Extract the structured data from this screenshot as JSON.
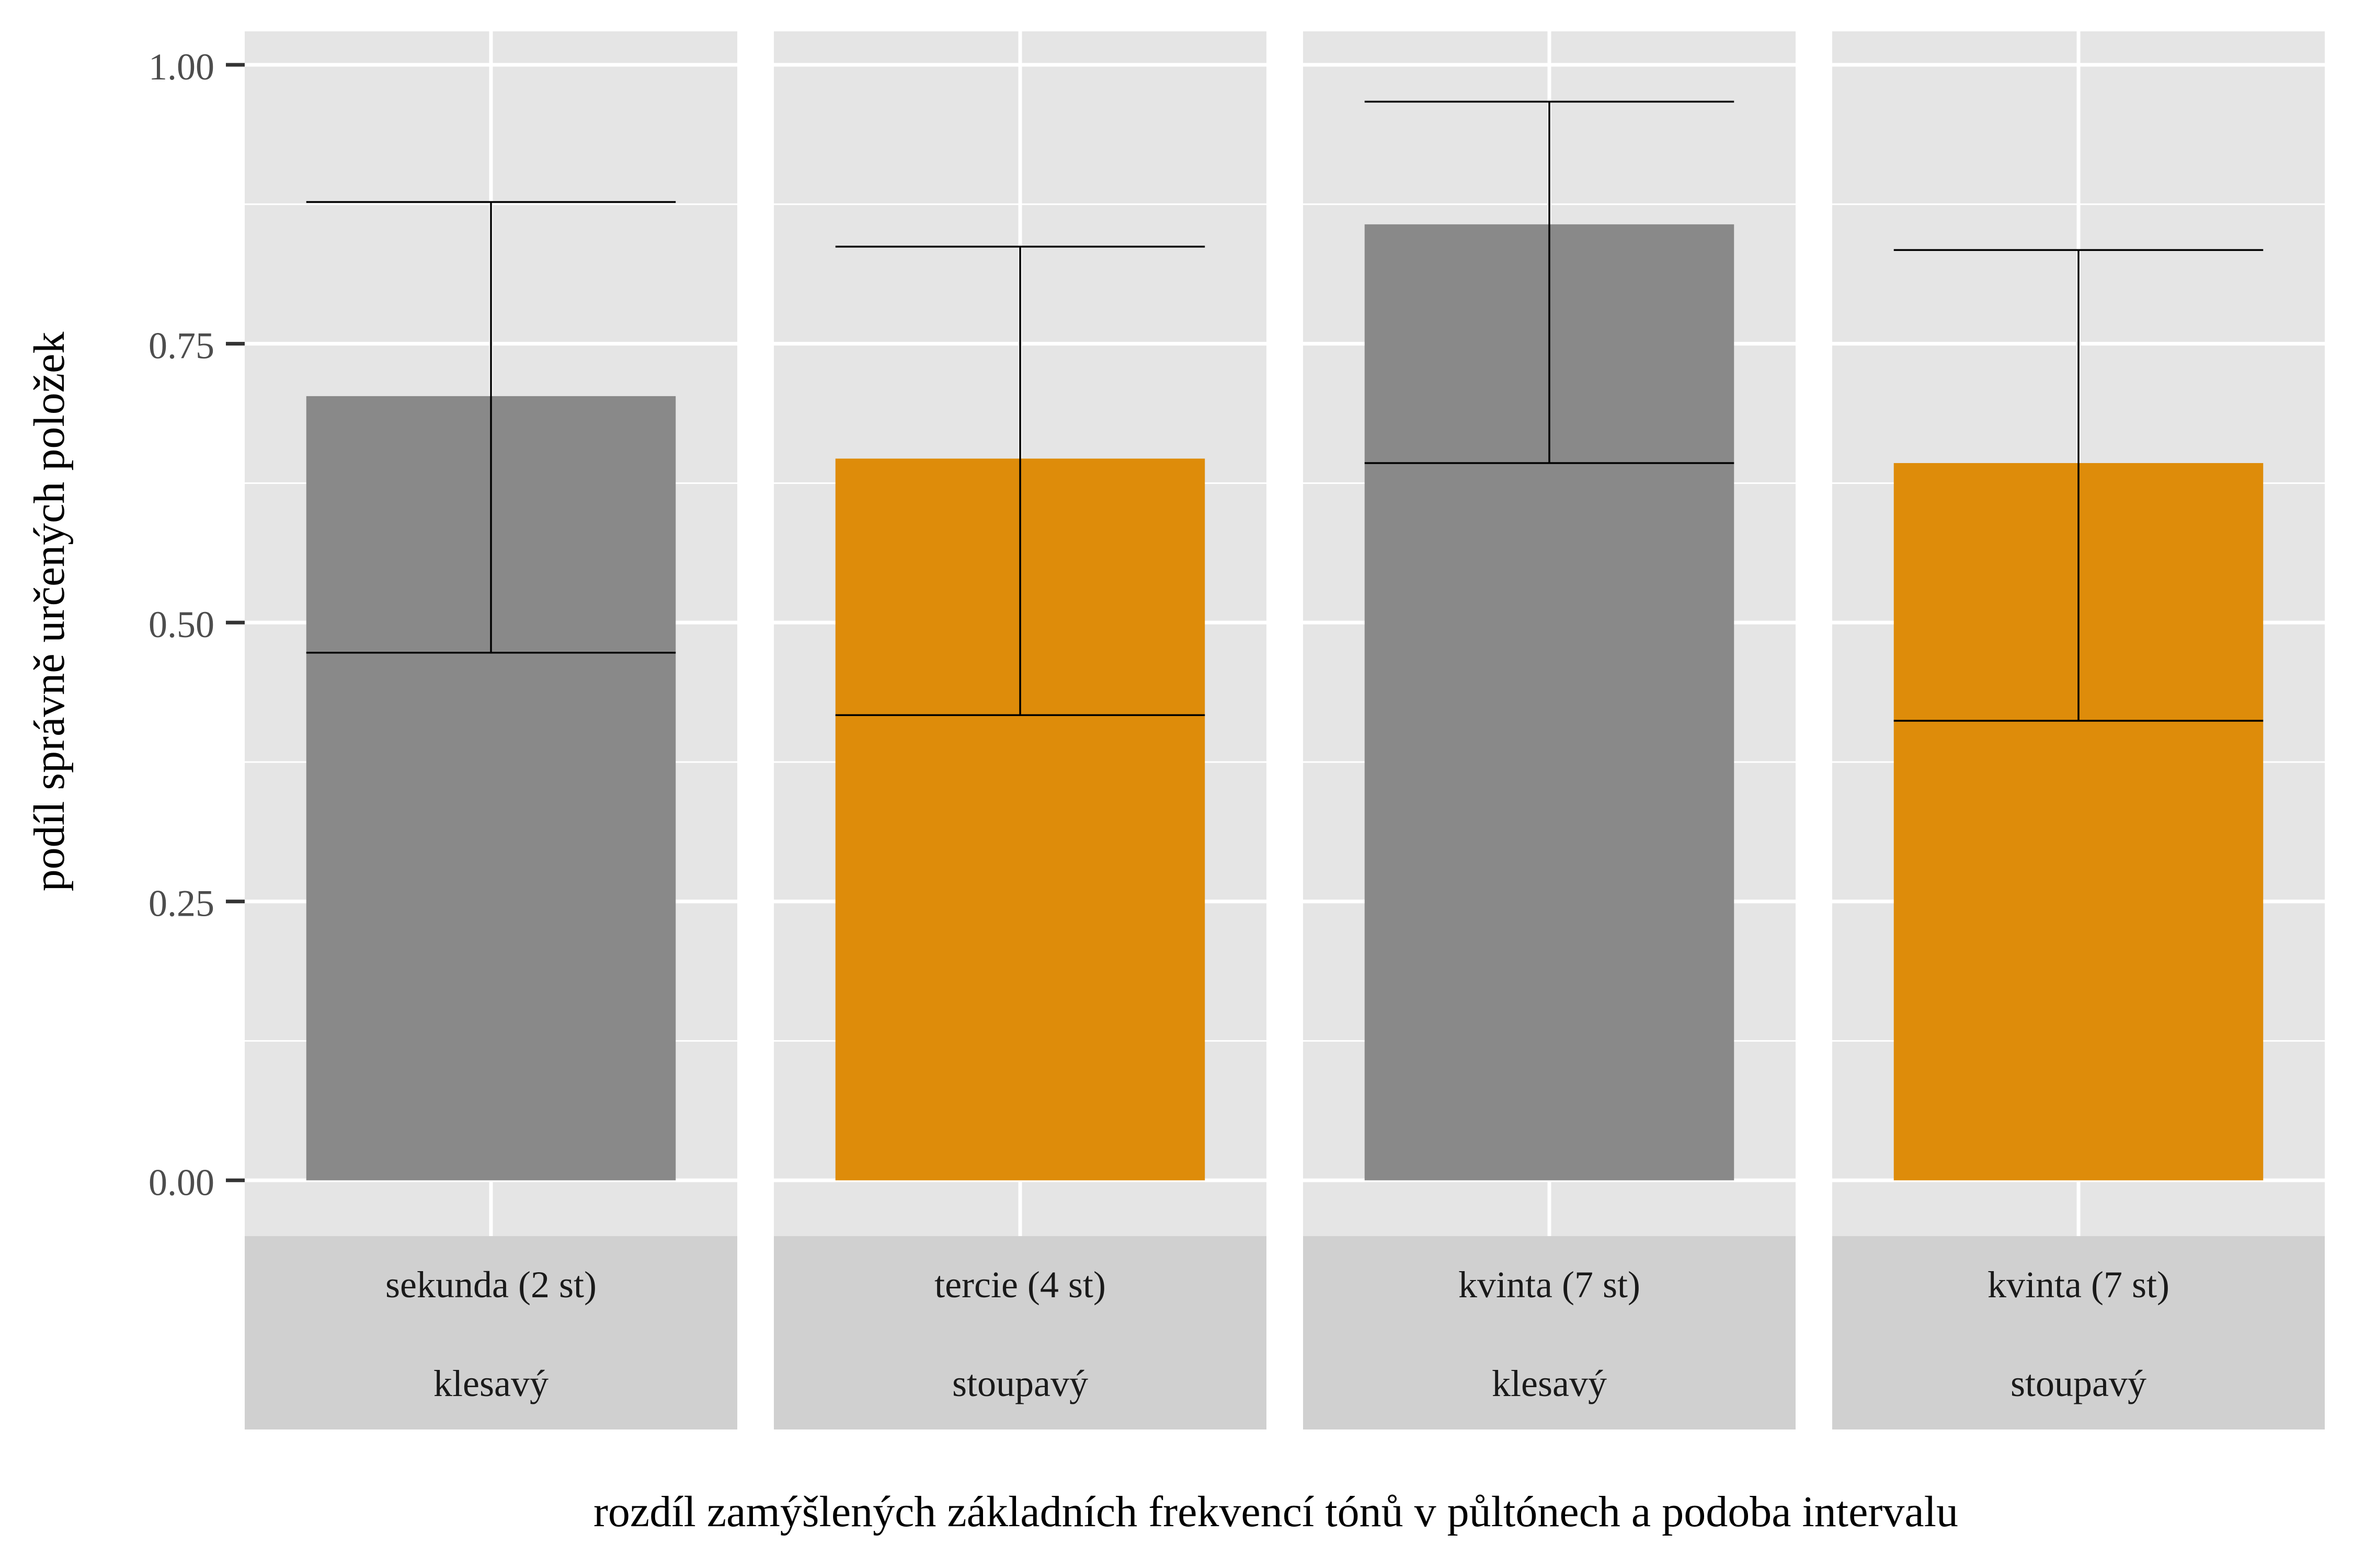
{
  "chart_data": {
    "type": "bar",
    "xlabel": "rozdíl zamýšlených základních frekvencí tónů v půltónech a podoba intervalu",
    "ylabel": "podíl správně určených položek",
    "ylim": [
      -0.05,
      1.03
    ],
    "y_ticks": [
      0.0,
      0.25,
      0.5,
      0.75,
      1.0
    ],
    "y_tick_labels": [
      "0.00",
      "0.25",
      "0.50",
      "0.75",
      "1.00"
    ],
    "grid": true,
    "panel_background": "#e5e5e5",
    "strip_background": "#d0d0d0",
    "colors": {
      "klesavý": "#898989",
      "stoupavý": "#de8c0a"
    },
    "facets": [
      {
        "interval": "sekunda (2 st)",
        "direction": "klesavý",
        "value": 0.703,
        "error_low": 0.473,
        "error_high": 0.877,
        "color": "#898989"
      },
      {
        "interval": "tercie (4 st)",
        "direction": "stoupavý",
        "value": 0.647,
        "error_low": 0.417,
        "error_high": 0.837,
        "color": "#de8c0a"
      },
      {
        "interval": "kvinta (7 st)",
        "direction": "klesavý",
        "value": 0.857,
        "error_low": 0.643,
        "error_high": 0.967,
        "color": "#898989"
      },
      {
        "interval": "kvinta (7 st)",
        "direction": "stoupavý",
        "value": 0.643,
        "error_low": 0.412,
        "error_high": 0.834,
        "color": "#de8c0a"
      }
    ]
  }
}
